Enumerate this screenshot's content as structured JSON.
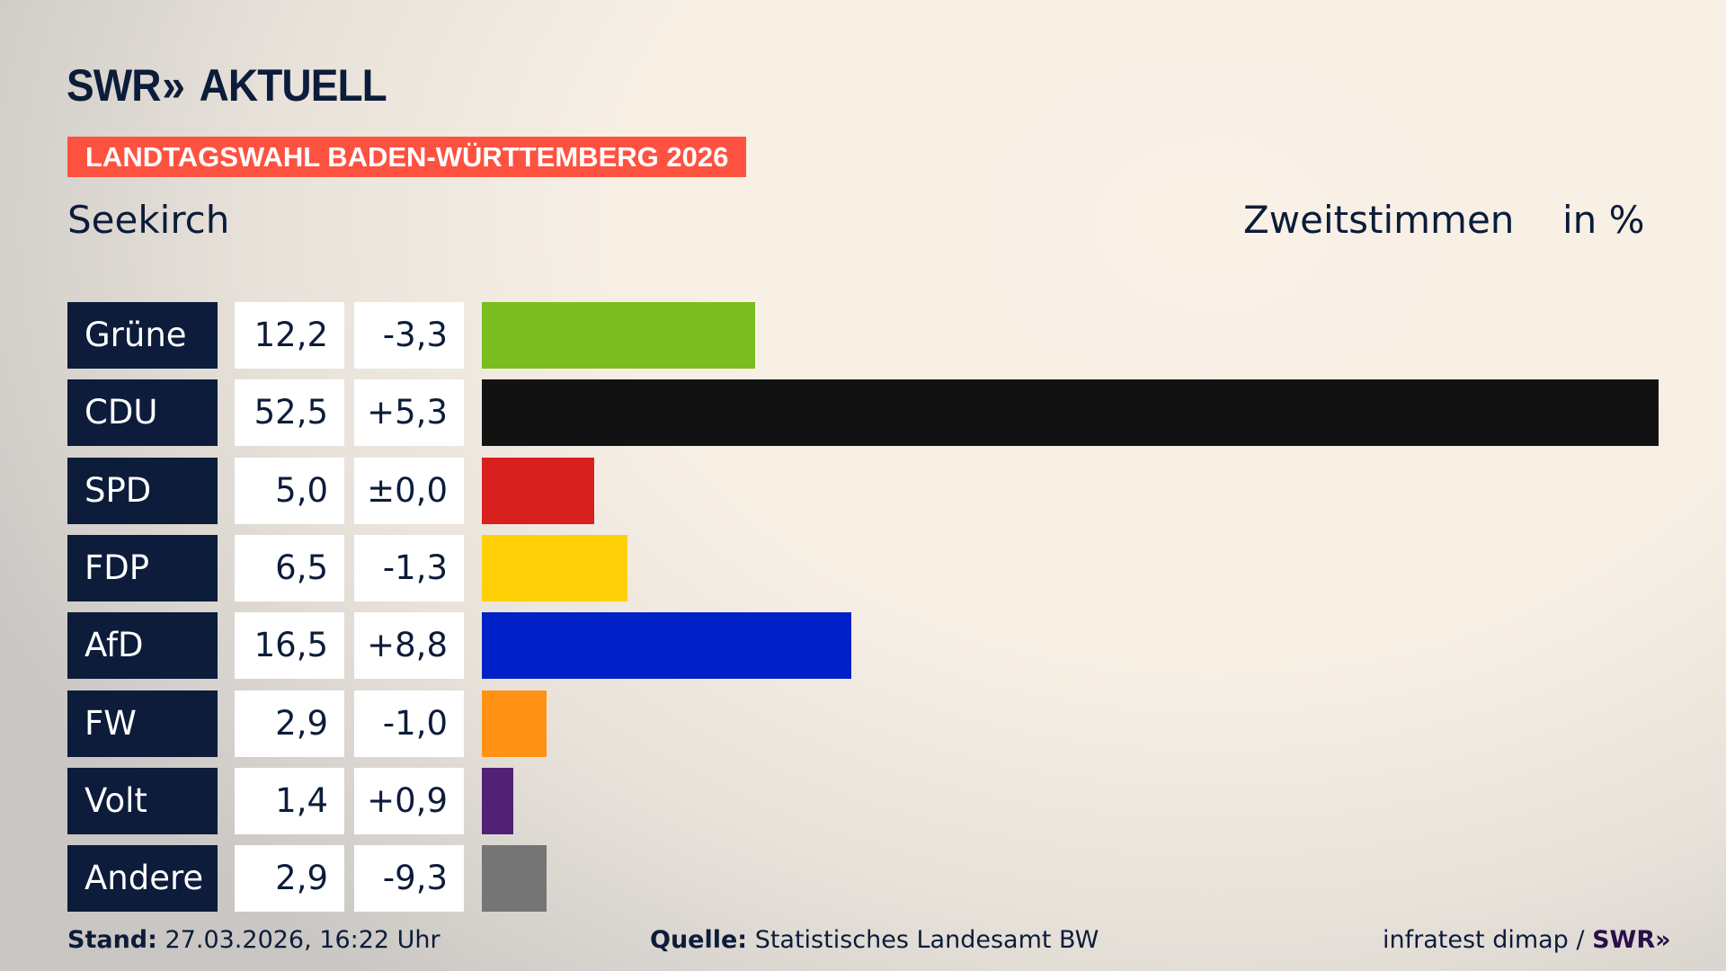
{
  "brand": {
    "logo_text": "SWR",
    "logo_chevrons": "»",
    "logo_suffix": "AKTUELL"
  },
  "banner": "LANDTAGSWAHL BADEN-WÜRTTEMBERG 2026",
  "place": "Seekirch",
  "header": {
    "vote_type": "Zweitstimmen",
    "unit": "in %"
  },
  "chart_data": {
    "type": "bar",
    "orientation": "horizontal",
    "categories": [
      "Grüne",
      "CDU",
      "SPD",
      "FDP",
      "AfD",
      "FW",
      "Volt",
      "Andere"
    ],
    "values": [
      12.2,
      52.5,
      5.0,
      6.5,
      16.5,
      2.9,
      1.4,
      2.9
    ],
    "value_labels": [
      "12,2",
      "52,5",
      "5,0",
      "6,5",
      "16,5",
      "2,9",
      "1,4",
      "2,9"
    ],
    "diff_labels": [
      "-3,3",
      "+5,3",
      "±0,0",
      "-1,3",
      "+8,8",
      "-1,0",
      "+0,9",
      "-9,3"
    ],
    "colors": [
      "#7bbd1e",
      "#121212",
      "#d8201f",
      "#ffcf08",
      "#0021c7",
      "#ff9214",
      "#512176",
      "#757575"
    ],
    "unit": "in %"
  },
  "footer": {
    "stand_label": "Stand:",
    "stand_value": "27.03.2026, 16:22 Uhr",
    "source_label": "Quelle:",
    "source_value": "Statistisches Landesamt BW",
    "credit": "infratest dimap /",
    "credit_logo": "SWR»"
  }
}
